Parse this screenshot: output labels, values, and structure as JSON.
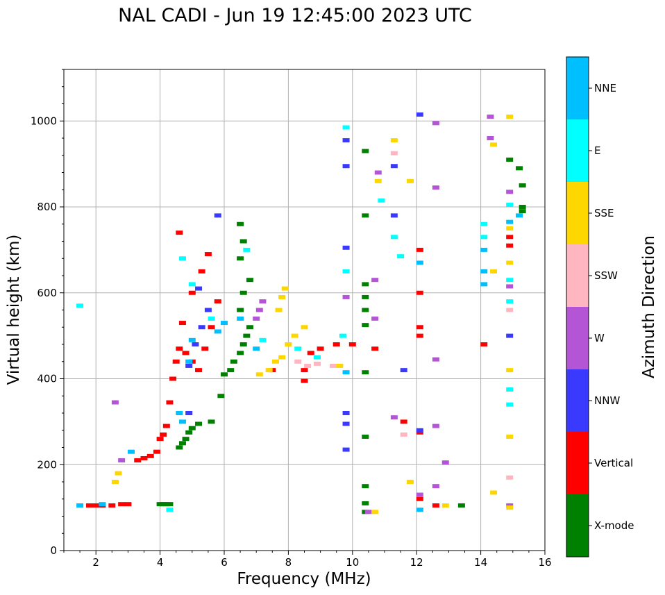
{
  "chart_data": {
    "type": "scatter",
    "title": "NAL CADI - Jun 19 12:45:00 2023 UTC",
    "xlabel": "Frequency (MHz)",
    "ylabel": "Virtual height (km)",
    "xlim": [
      1,
      16
    ],
    "ylim": [
      0,
      1120
    ],
    "xticks": [
      2,
      4,
      6,
      8,
      10,
      12,
      14,
      16
    ],
    "yticks": [
      0,
      200,
      400,
      600,
      800,
      1000
    ],
    "grid": true,
    "colorbar": {
      "label": "Azimuth Direction",
      "categories": [
        {
          "name": "X-mode",
          "color": "#008000"
        },
        {
          "name": "Vertical",
          "color": "#ff0000"
        },
        {
          "name": "NNW",
          "color": "#3a3aff"
        },
        {
          "name": "W",
          "color": "#b455d6"
        },
        {
          "name": "SSW",
          "color": "#ffb6c1"
        },
        {
          "name": "SSE",
          "color": "#ffd700"
        },
        {
          "name": "E",
          "color": "#00ffff"
        },
        {
          "name": "NNE",
          "color": "#00bfff"
        }
      ]
    },
    "series": [
      {
        "name": "X-mode",
        "points": [
          [
            4.0,
            108
          ],
          [
            4.1,
            108
          ],
          [
            4.2,
            108
          ],
          [
            4.3,
            108
          ],
          [
            4.6,
            240
          ],
          [
            4.7,
            250
          ],
          [
            4.8,
            260
          ],
          [
            4.9,
            275
          ],
          [
            5.0,
            285
          ],
          [
            5.2,
            295
          ],
          [
            5.6,
            300
          ],
          [
            5.9,
            360
          ],
          [
            6.0,
            410
          ],
          [
            6.2,
            420
          ],
          [
            6.3,
            440
          ],
          [
            6.5,
            460
          ],
          [
            6.6,
            480
          ],
          [
            6.7,
            500
          ],
          [
            6.8,
            520
          ],
          [
            6.5,
            560
          ],
          [
            6.6,
            600
          ],
          [
            6.8,
            630
          ],
          [
            6.5,
            680
          ],
          [
            6.6,
            720
          ],
          [
            6.5,
            760
          ],
          [
            10.4,
            930
          ],
          [
            10.4,
            780
          ],
          [
            10.4,
            620
          ],
          [
            10.4,
            590
          ],
          [
            10.4,
            560
          ],
          [
            10.4,
            525
          ],
          [
            10.4,
            415
          ],
          [
            10.4,
            265
          ],
          [
            10.4,
            150
          ],
          [
            10.4,
            110
          ],
          [
            10.4,
            90
          ],
          [
            13.4,
            105
          ],
          [
            14.9,
            910
          ],
          [
            15.2,
            890
          ],
          [
            15.3,
            850
          ],
          [
            15.3,
            800
          ],
          [
            15.3,
            790
          ]
        ]
      },
      {
        "name": "Vertical",
        "points": [
          [
            1.8,
            105
          ],
          [
            2.0,
            105
          ],
          [
            2.2,
            105
          ],
          [
            2.5,
            105
          ],
          [
            2.8,
            108
          ],
          [
            3.0,
            108
          ],
          [
            3.3,
            210
          ],
          [
            3.5,
            215
          ],
          [
            3.7,
            220
          ],
          [
            3.9,
            230
          ],
          [
            4.0,
            260
          ],
          [
            4.1,
            270
          ],
          [
            4.2,
            290
          ],
          [
            4.3,
            345
          ],
          [
            4.4,
            400
          ],
          [
            4.5,
            440
          ],
          [
            4.6,
            470
          ],
          [
            4.7,
            530
          ],
          [
            4.8,
            460
          ],
          [
            5.0,
            440
          ],
          [
            5.2,
            420
          ],
          [
            5.4,
            470
          ],
          [
            5.6,
            520
          ],
          [
            5.8,
            580
          ],
          [
            5.0,
            600
          ],
          [
            5.3,
            650
          ],
          [
            5.5,
            690
          ],
          [
            4.6,
            740
          ],
          [
            7.5,
            420
          ],
          [
            8.5,
            420
          ],
          [
            8.5,
            395
          ],
          [
            8.7,
            460
          ],
          [
            9.0,
            470
          ],
          [
            9.5,
            480
          ],
          [
            10.0,
            480
          ],
          [
            10.7,
            470
          ],
          [
            11.6,
            300
          ],
          [
            12.1,
            275
          ],
          [
            12.1,
            500
          ],
          [
            12.1,
            520
          ],
          [
            12.1,
            600
          ],
          [
            12.1,
            700
          ],
          [
            12.1,
            120
          ],
          [
            12.6,
            105
          ],
          [
            14.1,
            480
          ],
          [
            14.9,
            730
          ],
          [
            14.9,
            710
          ]
        ]
      },
      {
        "name": "NNW",
        "points": [
          [
            4.9,
            320
          ],
          [
            4.9,
            430
          ],
          [
            5.1,
            480
          ],
          [
            5.3,
            520
          ],
          [
            5.5,
            560
          ],
          [
            5.2,
            610
          ],
          [
            5.8,
            780
          ],
          [
            9.8,
            955
          ],
          [
            9.8,
            895
          ],
          [
            9.8,
            705
          ],
          [
            9.8,
            320
          ],
          [
            9.8,
            295
          ],
          [
            9.8,
            235
          ],
          [
            11.3,
            895
          ],
          [
            11.3,
            780
          ],
          [
            11.6,
            420
          ],
          [
            12.1,
            1015
          ],
          [
            12.1,
            280
          ],
          [
            14.9,
            500
          ]
        ]
      },
      {
        "name": "W",
        "points": [
          [
            2.6,
            345
          ],
          [
            2.8,
            210
          ],
          [
            7.0,
            540
          ],
          [
            7.1,
            560
          ],
          [
            7.2,
            580
          ],
          [
            9.8,
            590
          ],
          [
            10.7,
            630
          ],
          [
            10.7,
            540
          ],
          [
            10.8,
            880
          ],
          [
            10.5,
            90
          ],
          [
            11.3,
            310
          ],
          [
            12.1,
            130
          ],
          [
            12.6,
            995
          ],
          [
            12.6,
            845
          ],
          [
            12.6,
            445
          ],
          [
            12.6,
            290
          ],
          [
            12.6,
            150
          ],
          [
            12.9,
            205
          ],
          [
            14.3,
            1010
          ],
          [
            14.3,
            960
          ],
          [
            14.9,
            835
          ],
          [
            14.9,
            615
          ],
          [
            14.9,
            105
          ]
        ]
      },
      {
        "name": "SSW",
        "points": [
          [
            8.3,
            440
          ],
          [
            8.6,
            430
          ],
          [
            8.9,
            435
          ],
          [
            9.4,
            430
          ],
          [
            11.3,
            925
          ],
          [
            11.6,
            270
          ],
          [
            14.9,
            560
          ],
          [
            14.9,
            170
          ]
        ]
      },
      {
        "name": "SSE",
        "points": [
          [
            2.6,
            160
          ],
          [
            2.7,
            180
          ],
          [
            7.1,
            410
          ],
          [
            7.4,
            420
          ],
          [
            7.6,
            440
          ],
          [
            7.8,
            450
          ],
          [
            8.0,
            480
          ],
          [
            8.2,
            500
          ],
          [
            7.7,
            560
          ],
          [
            7.8,
            590
          ],
          [
            7.9,
            610
          ],
          [
            8.5,
            520
          ],
          [
            9.6,
            430
          ],
          [
            10.8,
            860
          ],
          [
            10.7,
            90
          ],
          [
            11.3,
            955
          ],
          [
            11.8,
            860
          ],
          [
            11.8,
            160
          ],
          [
            12.9,
            105
          ],
          [
            14.4,
            945
          ],
          [
            14.4,
            650
          ],
          [
            14.4,
            135
          ],
          [
            14.9,
            1010
          ],
          [
            14.9,
            750
          ],
          [
            14.9,
            670
          ],
          [
            14.9,
            420
          ],
          [
            14.9,
            265
          ],
          [
            14.9,
            100
          ]
        ]
      },
      {
        "name": "E",
        "points": [
          [
            1.5,
            570
          ],
          [
            4.3,
            95
          ],
          [
            4.7,
            680
          ],
          [
            5.0,
            620
          ],
          [
            5.6,
            540
          ],
          [
            6.7,
            700
          ],
          [
            7.2,
            490
          ],
          [
            8.3,
            470
          ],
          [
            8.9,
            450
          ],
          [
            9.7,
            500
          ],
          [
            9.8,
            985
          ],
          [
            9.8,
            650
          ],
          [
            10.9,
            815
          ],
          [
            11.3,
            730
          ],
          [
            11.5,
            685
          ],
          [
            14.1,
            760
          ],
          [
            14.1,
            730
          ],
          [
            14.9,
            805
          ],
          [
            14.9,
            630
          ],
          [
            14.9,
            580
          ],
          [
            14.9,
            375
          ],
          [
            14.9,
            340
          ]
        ]
      },
      {
        "name": "NNE",
        "points": [
          [
            1.5,
            105
          ],
          [
            2.2,
            108
          ],
          [
            3.1,
            230
          ],
          [
            4.6,
            320
          ],
          [
            4.7,
            300
          ],
          [
            4.9,
            440
          ],
          [
            5.0,
            490
          ],
          [
            5.8,
            510
          ],
          [
            6.0,
            530
          ],
          [
            6.5,
            540
          ],
          [
            7.0,
            470
          ],
          [
            9.8,
            415
          ],
          [
            12.1,
            95
          ],
          [
            12.1,
            670
          ],
          [
            14.1,
            700
          ],
          [
            14.1,
            650
          ],
          [
            14.1,
            620
          ],
          [
            14.9,
            765
          ],
          [
            15.2,
            780
          ]
        ]
      }
    ]
  }
}
